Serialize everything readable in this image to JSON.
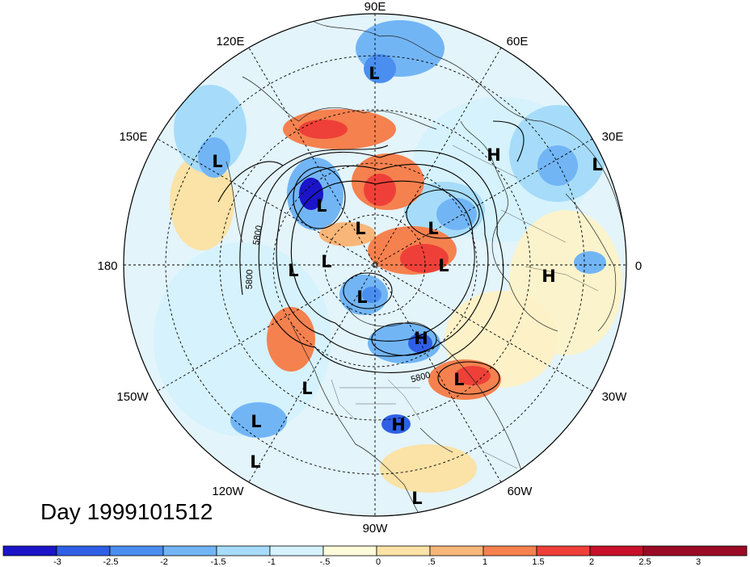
{
  "title": "Day 1999101512",
  "longitude_labels": [
    "90E",
    "60E",
    "30E",
    "0",
    "30W",
    "60W",
    "90W",
    "120W",
    "150W",
    "180",
    "150E",
    "120E"
  ],
  "contour_labels": [
    "5800",
    "5800",
    "5800"
  ],
  "pressure_centers": [
    "L",
    "L",
    "L",
    "H",
    "L",
    "L",
    "L",
    "L",
    "H",
    "L",
    "L",
    "L",
    "H",
    "L",
    "L",
    "L",
    "H",
    "L",
    "L",
    "L",
    "L"
  ],
  "colorbar": {
    "tick_labels": [
      "-3",
      "-2.5",
      "-2",
      "-1.5",
      "-1",
      "-.5",
      "0",
      ".5",
      "1",
      "1.5",
      "2",
      "2.5",
      "3"
    ],
    "colors": [
      "#1b14c8",
      "#2f5fe6",
      "#4a8ef0",
      "#72b5f5",
      "#a6dcf9",
      "#d6f2fc",
      "#fdfbd9",
      "#fbe2a6",
      "#f8b679",
      "#f5814f",
      "#ee4038",
      "#c8102a",
      "#9a0a24"
    ]
  }
}
